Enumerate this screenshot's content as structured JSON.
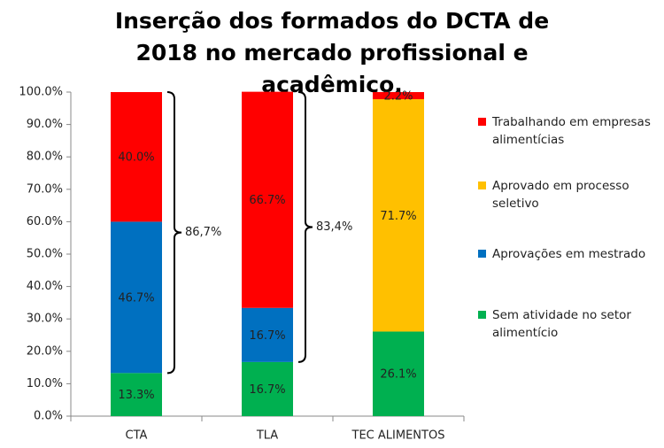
{
  "chart_data": {
    "type": "stacked_bar",
    "title": "Inserção dos formados do DCTA de 2018 no mercado profissional e acadêmico.",
    "categories": [
      "CTA",
      "TLA",
      "TEC ALIMENTOS"
    ],
    "series": [
      {
        "name": "Sem atividade no setor alimentício",
        "color": "#00b050",
        "values": [
          13.3,
          16.7,
          26.1
        ],
        "value_labels": [
          "13.3%",
          "16.7%",
          "26.1%"
        ]
      },
      {
        "name": "Aprovações em mestrado",
        "color": "#0070c0",
        "values": [
          46.7,
          16.7,
          null
        ],
        "value_labels": [
          "46.7%",
          "16.7%",
          null
        ]
      },
      {
        "name": "Aprovado em processo seletivo",
        "color": "#ffc000",
        "values": [
          null,
          null,
          71.7
        ],
        "value_labels": [
          null,
          null,
          "71.7%"
        ]
      },
      {
        "name": "Trabalhando em empresas alimentícias",
        "color": "#ff0000",
        "values": [
          40.0,
          66.7,
          2.2
        ],
        "value_labels": [
          "40.0%",
          "66.7%",
          "2.2%"
        ]
      }
    ],
    "annotations": [
      "86,7%",
      "83,4%"
    ],
    "ylim": [
      0,
      100
    ],
    "yticks": [
      {
        "value": 0,
        "label": "0.0%"
      },
      {
        "value": 10,
        "label": "10.0%"
      },
      {
        "value": 20,
        "label": "20.0%"
      },
      {
        "value": 30,
        "label": "30.0%"
      },
      {
        "value": 40,
        "label": "40.0%"
      },
      {
        "value": 50,
        "label": "50.0%"
      },
      {
        "value": 60,
        "label": "60.0%"
      },
      {
        "value": 70,
        "label": "70.0%"
      },
      {
        "value": 80,
        "label": "80.0%"
      },
      {
        "value": 90,
        "label": "90.0%"
      },
      {
        "value": 100,
        "label": "100.0%"
      }
    ],
    "legend": "right"
  }
}
